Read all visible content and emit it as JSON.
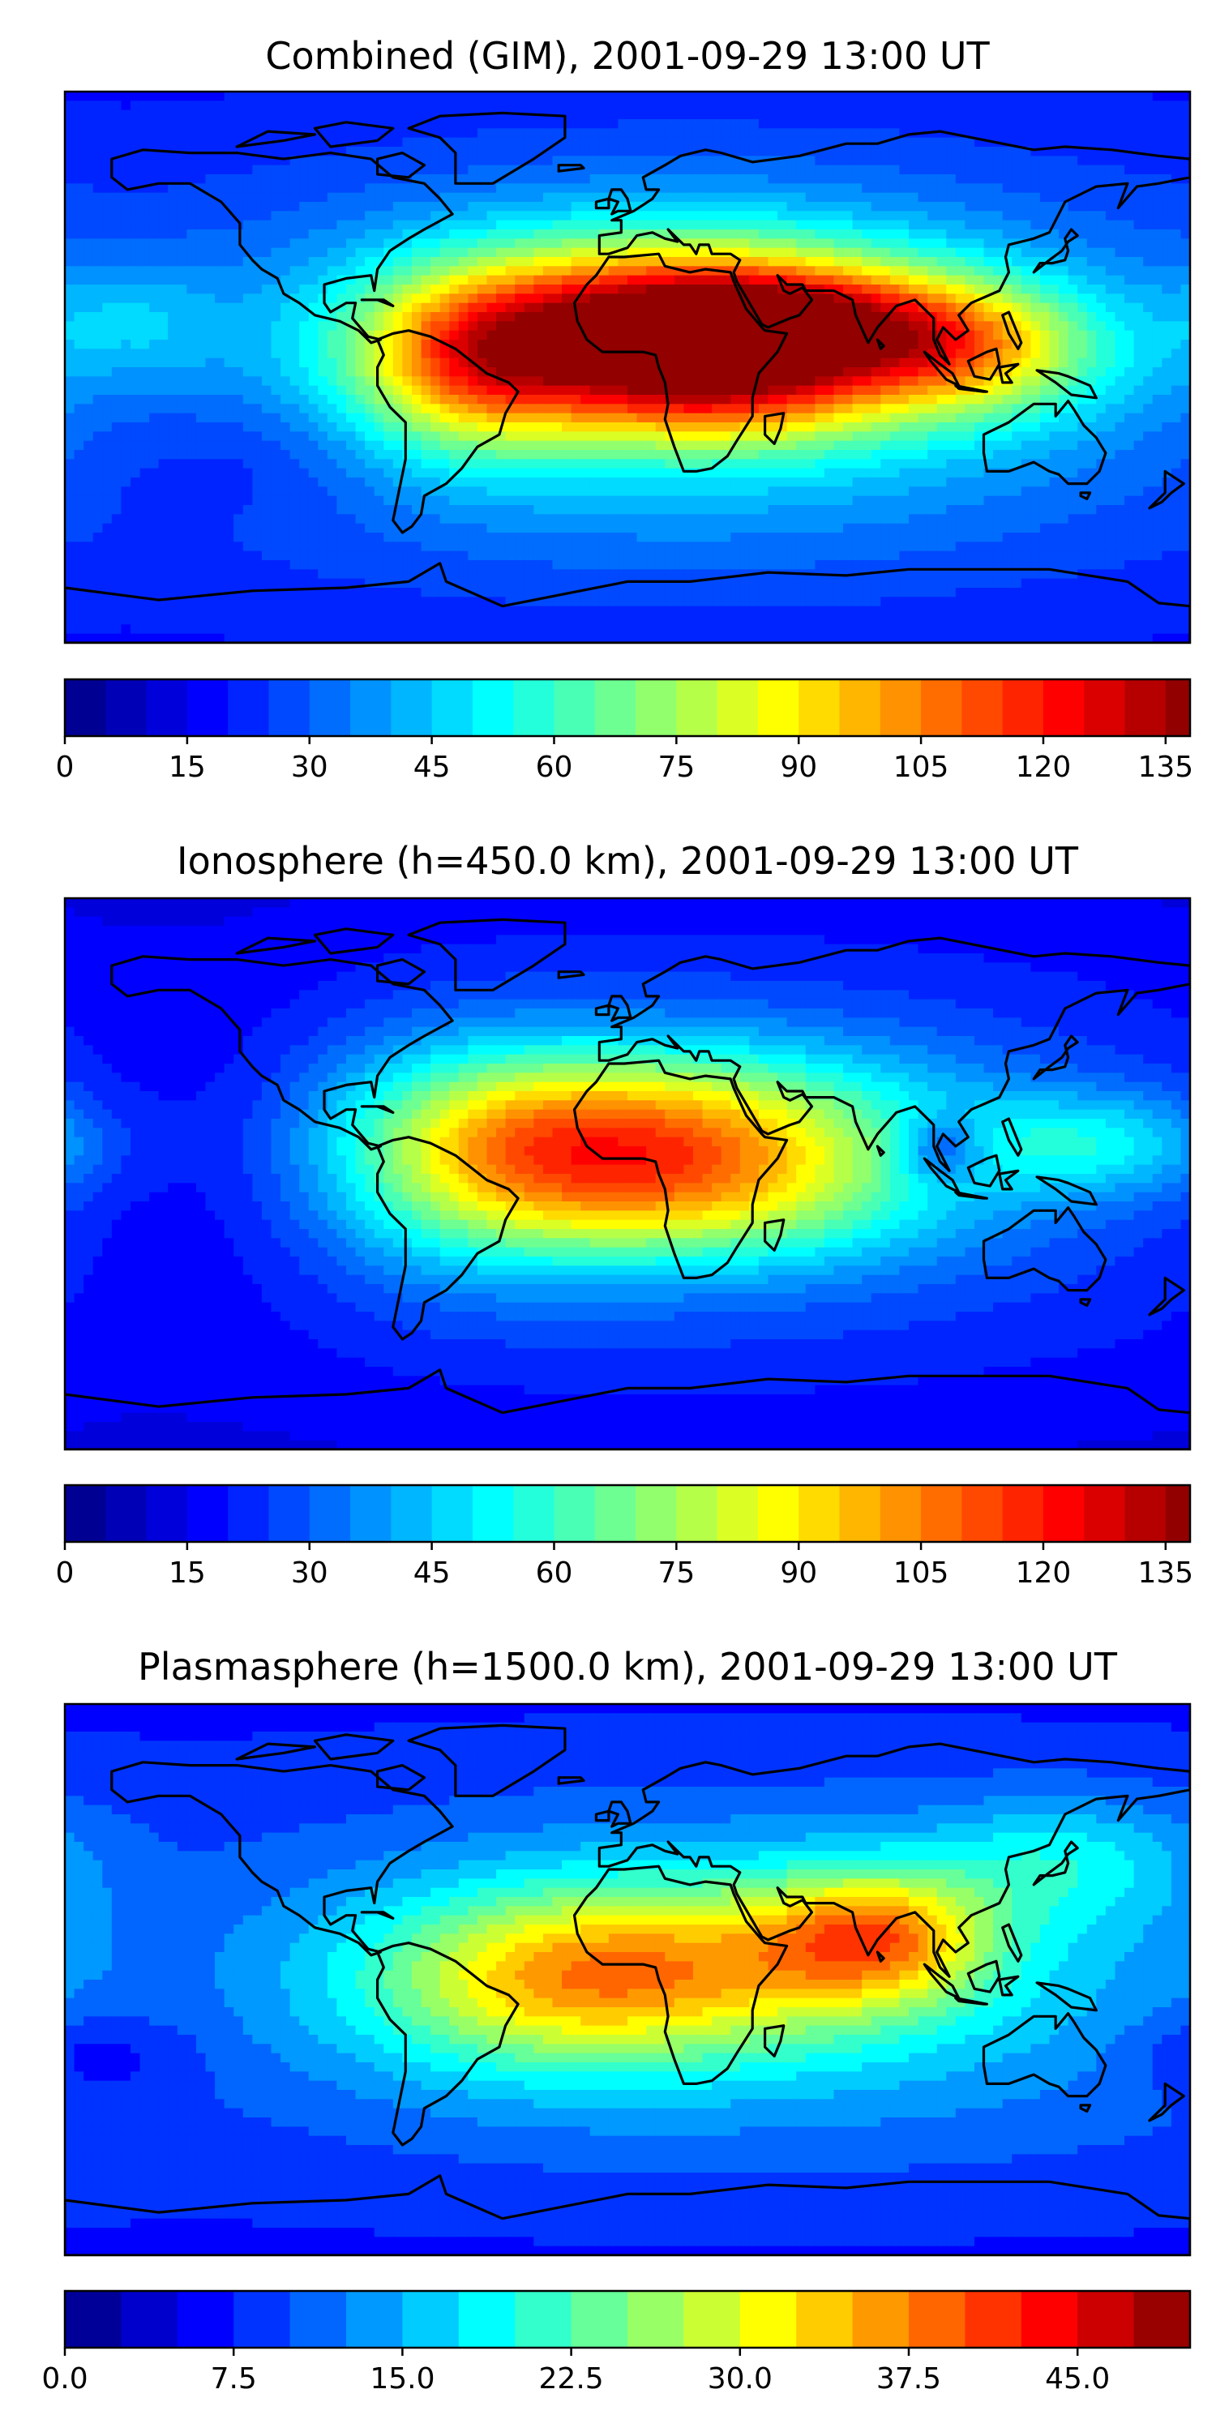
{
  "panels": [
    {
      "title": "Combined (GIM), 2001-09-29 13:00 UT",
      "colorbar": {
        "vmin": 0,
        "vmax": 138,
        "step": 5,
        "tick_values": [
          0,
          15,
          30,
          45,
          60,
          75,
          90,
          105,
          120,
          135
        ],
        "tick_labels": [
          "0",
          "15",
          "30",
          "45",
          "60",
          "75",
          "90",
          "105",
          "120",
          "135"
        ]
      },
      "features": {
        "base": 25,
        "blobs": [
          {
            "lon": 15,
            "lat": 12,
            "slon": 55,
            "slat": 20,
            "amp": 95
          },
          {
            "lon": 55,
            "lat": 15,
            "slon": 40,
            "slat": 12,
            "amp": 35
          },
          {
            "lon": 30,
            "lat": -10,
            "slon": 35,
            "slat": 12,
            "amp": 25
          },
          {
            "lon": -50,
            "lat": 0,
            "slon": 25,
            "slat": 20,
            "amp": 40
          },
          {
            "lon": 110,
            "lat": 5,
            "slon": 30,
            "slat": 15,
            "amp": 40
          },
          {
            "lon": 20,
            "lat": 0,
            "slon": 100,
            "slat": 45,
            "amp": 30
          },
          {
            "lon": -160,
            "lat": 15,
            "slon": 20,
            "slat": 15,
            "amp": 15
          },
          {
            "lon": -120,
            "lat": -30,
            "slon": 30,
            "slat": 15,
            "amp": -8
          }
        ]
      }
    },
    {
      "title": "Ionosphere  (h=450.0 km), 2001-09-29 13:00 UT",
      "colorbar": {
        "vmin": 0,
        "vmax": 138,
        "step": 5,
        "tick_values": [
          0,
          15,
          30,
          45,
          60,
          75,
          90,
          105,
          120,
          135
        ],
        "tick_labels": [
          "0",
          "15",
          "30",
          "45",
          "60",
          "75",
          "90",
          "105",
          "120",
          "135"
        ]
      },
      "features": {
        "base": 18,
        "blobs": [
          {
            "lon": 10,
            "lat": 15,
            "slon": 55,
            "slat": 18,
            "amp": 60
          },
          {
            "lon": 20,
            "lat": -10,
            "slon": 50,
            "slat": 15,
            "amp": 35
          },
          {
            "lon": -45,
            "lat": 5,
            "slon": 35,
            "slat": 25,
            "amp": 30
          },
          {
            "lon": 150,
            "lat": 10,
            "slon": 30,
            "slat": 12,
            "amp": 25
          },
          {
            "lon": 20,
            "lat": 5,
            "slon": 110,
            "slat": 50,
            "amp": 20
          },
          {
            "lon": 100,
            "lat": 8,
            "slon": 10,
            "slat": 8,
            "amp": -25
          },
          {
            "lon": -130,
            "lat": 5,
            "slon": 30,
            "slat": 40,
            "amp": -8
          }
        ]
      }
    },
    {
      "title": "Plasmasphere (h=1500.0 km), 2001-09-29 13:00 UT",
      "colorbar": {
        "vmin": 0,
        "vmax": 50,
        "step": 2.5,
        "tick_values": [
          0,
          7.5,
          15,
          22.5,
          30,
          37.5,
          45
        ],
        "tick_labels": [
          "0.0",
          "7.5",
          "15.0",
          "22.5",
          "30.0",
          "37.5",
          "45.0"
        ]
      },
      "features": {
        "base": 9,
        "blobs": [
          {
            "lon": 80,
            "lat": 15,
            "slon": 25,
            "slat": 15,
            "amp": 18
          },
          {
            "lon": 10,
            "lat": 5,
            "slon": 55,
            "slat": 20,
            "amp": 16
          },
          {
            "lon": -30,
            "lat": -5,
            "slon": 40,
            "slat": 20,
            "amp": 8
          },
          {
            "lon": 40,
            "lat": 0,
            "slon": 110,
            "slat": 40,
            "amp": 9
          },
          {
            "lon": 140,
            "lat": 40,
            "slon": 30,
            "slat": 15,
            "amp": 8
          },
          {
            "lon": -170,
            "lat": -25,
            "slon": 20,
            "slat": 10,
            "amp": -5
          }
        ]
      }
    }
  ],
  "colormap": [
    "#00007f",
    "#0000ff",
    "#007fff",
    "#00ffff",
    "#7fff7f",
    "#ffff00",
    "#ff7f00",
    "#ff0000",
    "#7f0000"
  ],
  "coastline_color": "#000000",
  "frame_color": "#000000"
}
